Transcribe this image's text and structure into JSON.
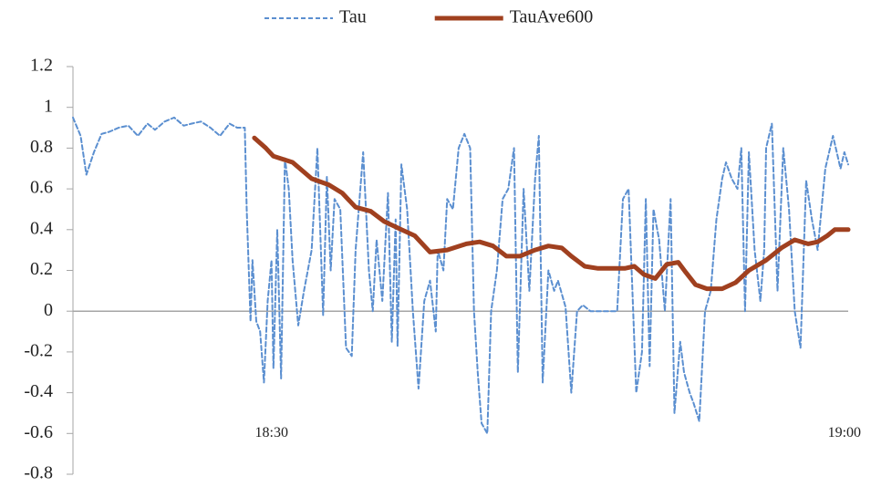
{
  "chart_data": {
    "type": "line",
    "ylim": [
      -0.8,
      1.2
    ],
    "yticks": [
      1.2,
      1,
      0.8,
      0.6,
      0.4,
      0.2,
      0,
      -0.2,
      -0.4,
      -0.6,
      -0.8
    ],
    "xlim": [
      1099.6,
      1140.2
    ],
    "xticks": [
      {
        "value": 1110,
        "label": "18:30"
      },
      {
        "value": 1140,
        "label": "19:00"
      }
    ],
    "legend": "top",
    "series": [
      {
        "name": "Tau",
        "color": "#5b8fd0",
        "dash": "dashed",
        "x": [
          1099.6,
          1100.0,
          1100.3,
          1100.7,
          1101.1,
          1101.5,
          1102.0,
          1102.5,
          1103.0,
          1103.5,
          1103.9,
          1104.4,
          1104.9,
          1105.4,
          1105.8,
          1106.3,
          1106.8,
          1107.3,
          1107.8,
          1108.2,
          1108.6,
          1108.7,
          1108.9,
          1109.0,
          1109.2,
          1109.4,
          1109.6,
          1109.8,
          1110.0,
          1110.1,
          1110.3,
          1110.5,
          1110.7,
          1110.9,
          1111.1,
          1111.4,
          1111.7,
          1112.1,
          1112.4,
          1112.7,
          1112.9,
          1113.1,
          1113.3,
          1113.6,
          1113.9,
          1114.2,
          1114.4,
          1114.8,
          1115.1,
          1115.3,
          1115.5,
          1115.8,
          1116.1,
          1116.3,
          1116.5,
          1116.6,
          1116.8,
          1117.1,
          1117.4,
          1117.7,
          1118.0,
          1118.3,
          1118.6,
          1118.7,
          1119.0,
          1119.2,
          1119.5,
          1119.8,
          1120.1,
          1120.4,
          1120.6,
          1120.8,
          1121.0,
          1121.3,
          1121.5,
          1121.8,
          1122.1,
          1122.4,
          1122.7,
          1122.9,
          1123.2,
          1123.5,
          1123.8,
          1124.0,
          1124.2,
          1124.5,
          1124.8,
          1125.0,
          1125.4,
          1125.7,
          1126.0,
          1126.3,
          1126.7,
          1127.3,
          1128.1,
          1128.4,
          1128.7,
          1128.9,
          1129.1,
          1129.4,
          1129.6,
          1129.8,
          1130.0,
          1130.3,
          1130.6,
          1130.9,
          1131.1,
          1131.4,
          1131.6,
          1131.9,
          1132.1,
          1132.4,
          1132.7,
          1133.0,
          1133.3,
          1133.6,
          1133.8,
          1134.1,
          1134.4,
          1134.6,
          1134.8,
          1135.0,
          1135.3,
          1135.6,
          1135.8,
          1135.9,
          1136.2,
          1136.5,
          1136.8,
          1137.1,
          1137.4,
          1137.7,
          1138.0,
          1138.3,
          1138.6,
          1139.0,
          1139.4,
          1139.8,
          1140.0,
          1140.2
        ],
        "values": [
          0.95,
          0.86,
          0.67,
          0.78,
          0.87,
          0.88,
          0.9,
          0.91,
          0.86,
          0.92,
          0.89,
          0.93,
          0.95,
          0.91,
          0.92,
          0.93,
          0.9,
          0.86,
          0.92,
          0.9,
          0.9,
          0.5,
          -0.05,
          0.25,
          -0.05,
          -0.1,
          -0.35,
          0.05,
          0.25,
          -0.28,
          0.4,
          -0.33,
          0.75,
          0.6,
          0.25,
          -0.07,
          0.1,
          0.3,
          0.8,
          -0.02,
          0.66,
          0.2,
          0.55,
          0.5,
          -0.18,
          -0.22,
          0.3,
          0.78,
          0.2,
          0,
          0.35,
          0.05,
          0.58,
          -0.15,
          0.45,
          -0.17,
          0.72,
          0.5,
          0,
          -0.38,
          0.05,
          0.15,
          -0.1,
          0.3,
          0.2,
          0.55,
          0.5,
          0.8,
          0.87,
          0.8,
          0,
          -0.3,
          -0.55,
          -0.6,
          0,
          0.2,
          0.55,
          0.6,
          0.8,
          -0.3,
          0.6,
          0.1,
          0.65,
          0.86,
          -0.35,
          0.2,
          0.1,
          0.15,
          0.02,
          -0.4,
          0,
          0.03,
          0,
          0,
          0,
          0.55,
          0.6,
          0.1,
          -0.4,
          -0.2,
          0.55,
          -0.27,
          0.5,
          0.35,
          0,
          0.55,
          -0.5,
          -0.15,
          -0.3,
          -0.4,
          -0.45,
          -0.54,
          0,
          0.1,
          0.45,
          0.65,
          0.73,
          0.65,
          0.6,
          0.8,
          0,
          0.78,
          0.3,
          0.05,
          0.3,
          0.8,
          0.92,
          0.1,
          0.8,
          0.5,
          0,
          -0.18,
          0.64,
          0.45,
          0.3,
          0.7,
          0.86,
          0.7,
          0.78,
          0.72
        ]
      },
      {
        "name": "TauAve600",
        "color": "#a0401f",
        "dash": "solid",
        "x": [
          1109.1,
          1109.7,
          1110.1,
          1111.1,
          1112.1,
          1113.0,
          1113.7,
          1114.4,
          1115.2,
          1115.9,
          1116.8,
          1117.5,
          1118.3,
          1119.2,
          1120.2,
          1120.9,
          1121.6,
          1122.3,
          1123.0,
          1123.8,
          1124.5,
          1125.2,
          1125.7,
          1126.4,
          1127.1,
          1127.8,
          1128.5,
          1129.0,
          1129.5,
          1130.1,
          1130.7,
          1131.3,
          1131.7,
          1132.2,
          1132.8,
          1133.6,
          1134.3,
          1135.0,
          1135.9,
          1136.7,
          1137.4,
          1138.1,
          1138.6,
          1139.1,
          1139.5,
          1140.2
        ],
        "values": [
          0.85,
          0.8,
          0.76,
          0.73,
          0.65,
          0.62,
          0.58,
          0.51,
          0.49,
          0.44,
          0.4,
          0.37,
          0.29,
          0.3,
          0.33,
          0.34,
          0.32,
          0.27,
          0.27,
          0.3,
          0.32,
          0.31,
          0.27,
          0.22,
          0.21,
          0.21,
          0.21,
          0.22,
          0.18,
          0.16,
          0.23,
          0.24,
          0.19,
          0.13,
          0.11,
          0.11,
          0.14,
          0.2,
          0.25,
          0.31,
          0.35,
          0.33,
          0.34,
          0.37,
          0.4,
          0.4
        ]
      }
    ]
  }
}
